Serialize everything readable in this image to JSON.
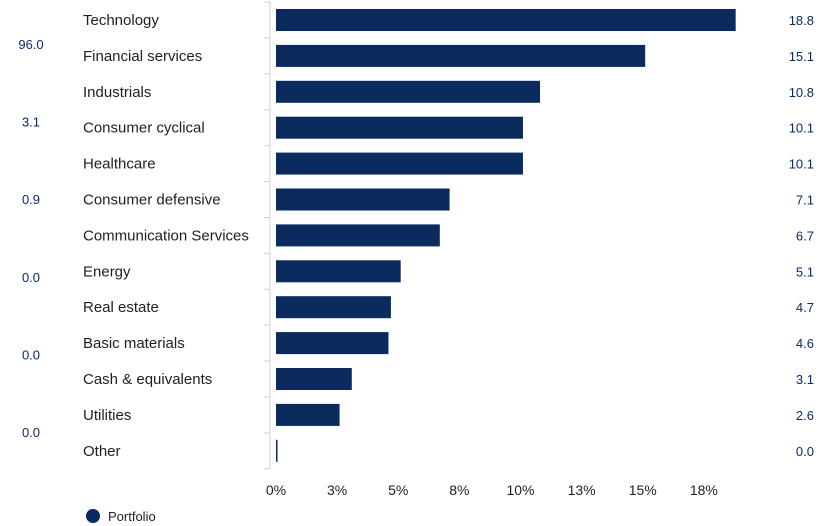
{
  "chart_data": {
    "type": "bar",
    "orientation": "horizontal",
    "categories": [
      "Technology",
      "Financial services",
      "Industrials",
      "Consumer cyclical",
      "Healthcare",
      "Consumer defensive",
      "Communication Services",
      "Energy",
      "Real estate",
      "Basic materials",
      "Cash & equivalents",
      "Utilities",
      "Other"
    ],
    "series": [
      {
        "name": "Portfolio",
        "values": [
          18.8,
          15.1,
          10.8,
          10.1,
          10.1,
          7.1,
          6.7,
          5.1,
          4.7,
          4.6,
          3.1,
          2.6,
          0.0
        ],
        "value_labels": [
          "18.8",
          "15.1",
          "10.8",
          "10.1",
          "10.1",
          "7.1",
          "6.7",
          "5.1",
          "4.7",
          "4.6",
          "3.1",
          "2.6",
          "0.0"
        ],
        "color": "#0b2a5e"
      }
    ],
    "left_column_values": [
      "96.0",
      "3.1",
      "0.9",
      "0.0",
      "0.0",
      "0.0"
    ],
    "x_tick_values": [
      0,
      2.5,
      5,
      7.5,
      10,
      12.5,
      15,
      17.5
    ],
    "x_tick_labels": [
      "0%",
      "3%",
      "5%",
      "8%",
      "10%",
      "13%",
      "15%",
      "18%"
    ],
    "xlim": [
      0,
      20
    ],
    "legend": {
      "position": "bottom-left",
      "items": [
        {
          "label": "Portfolio",
          "color": "#0b2a5e"
        }
      ]
    },
    "grid": false,
    "title": "",
    "xlabel": "",
    "ylabel": ""
  }
}
